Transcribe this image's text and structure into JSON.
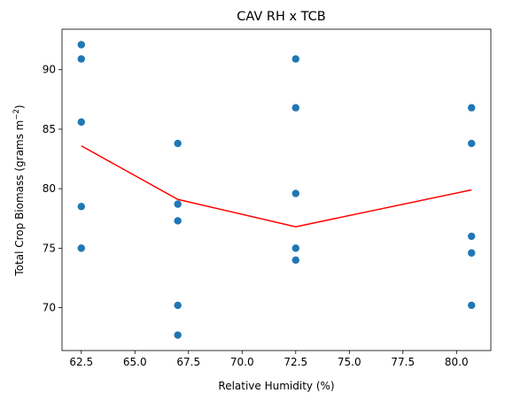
{
  "chart_data": {
    "type": "scatter",
    "title": "CAV RH x TCB",
    "xlabel": "Relative Humidity (%)",
    "ylabel_main": "Total Crop Biomass (grams m",
    "ylabel_sup": "−2",
    "ylabel_close": ")",
    "xlim": [
      61.6,
      81.6
    ],
    "ylim": [
      66.4,
      93.4
    ],
    "x_ticks": [
      62.5,
      65.0,
      67.5,
      70.0,
      72.5,
      75.0,
      77.5,
      80.0
    ],
    "x_tick_labels": [
      "62.5",
      "65.0",
      "67.5",
      "70.0",
      "72.5",
      "75.0",
      "77.5",
      "80.0"
    ],
    "y_ticks": [
      70,
      75,
      80,
      85,
      90
    ],
    "y_tick_labels": [
      "70",
      "75",
      "80",
      "85",
      "90"
    ],
    "grid": false,
    "series": [
      {
        "kind": "scatter",
        "color": "#1f77b4",
        "points": [
          {
            "x": 62.5,
            "y": 92.1
          },
          {
            "x": 62.5,
            "y": 90.9
          },
          {
            "x": 62.5,
            "y": 85.6
          },
          {
            "x": 62.5,
            "y": 78.5
          },
          {
            "x": 62.5,
            "y": 75.0
          },
          {
            "x": 67.0,
            "y": 83.8
          },
          {
            "x": 67.0,
            "y": 78.7
          },
          {
            "x": 67.0,
            "y": 77.3
          },
          {
            "x": 67.0,
            "y": 70.2
          },
          {
            "x": 67.0,
            "y": 67.7
          },
          {
            "x": 72.5,
            "y": 90.9
          },
          {
            "x": 72.5,
            "y": 86.8
          },
          {
            "x": 72.5,
            "y": 79.6
          },
          {
            "x": 72.5,
            "y": 75.0
          },
          {
            "x": 72.5,
            "y": 74.0
          },
          {
            "x": 80.7,
            "y": 86.8
          },
          {
            "x": 80.7,
            "y": 83.8
          },
          {
            "x": 80.7,
            "y": 76.0
          },
          {
            "x": 80.7,
            "y": 74.6
          },
          {
            "x": 80.7,
            "y": 70.2
          }
        ]
      },
      {
        "kind": "line",
        "color": "#ff0000",
        "points": [
          {
            "x": 62.5,
            "y": 83.6
          },
          {
            "x": 67.0,
            "y": 79.1
          },
          {
            "x": 72.5,
            "y": 76.8
          },
          {
            "x": 80.7,
            "y": 79.9
          }
        ]
      }
    ]
  }
}
